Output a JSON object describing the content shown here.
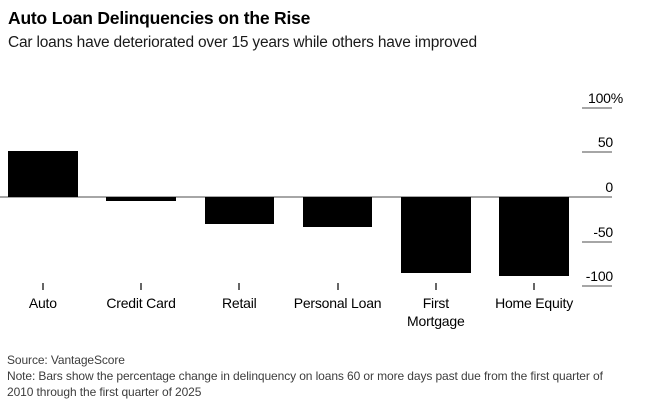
{
  "header": {
    "title": "Auto Loan Delinquencies on the Rise",
    "subtitle": "Car loans have deteriorated over 15 years while others have improved"
  },
  "footer": {
    "source": "Source: VantageScore",
    "note": "Note: Bars show the percentage change in delinquency on loans 60 or more days past due from the first quarter of 2010 through the first quarter of 2025"
  },
  "colors": {
    "bar": "#000000",
    "axis": "#a6a6a6",
    "category_tick": "#666666",
    "text": "#000000",
    "footer_text": "#3d3d3d",
    "background": "#ffffff"
  },
  "chart_data": {
    "type": "bar",
    "title": "Auto Loan Delinquencies on the Rise",
    "subtitle": "Car loans have deteriorated over 15 years while others have improved",
    "categories": [
      "Auto",
      "Credit Card",
      "Retail",
      "Personal Loan",
      "First Mortgage",
      "Home Equity"
    ],
    "categories_display": [
      "Auto",
      "Credit Card",
      "Retail",
      "Personal Loan",
      "First\nMortgage",
      "Home Equity"
    ],
    "values": [
      52,
      -5,
      -30,
      -34,
      -85,
      -89
    ],
    "unit": "%",
    "ylabel": "",
    "xlabel": "",
    "ylim": [
      -100,
      100
    ],
    "yticks": [
      100,
      50,
      0,
      -50,
      -100
    ],
    "ytick_labels": [
      "100%",
      "50",
      "0",
      "-50",
      "-100"
    ],
    "axis_side": "right",
    "legend": "none",
    "grid": false,
    "source": "VantageScore",
    "note": "Bars show the percentage change in delinquency on loans 60 or more days past due from the first quarter of 2010 through the first quarter of 2025"
  }
}
